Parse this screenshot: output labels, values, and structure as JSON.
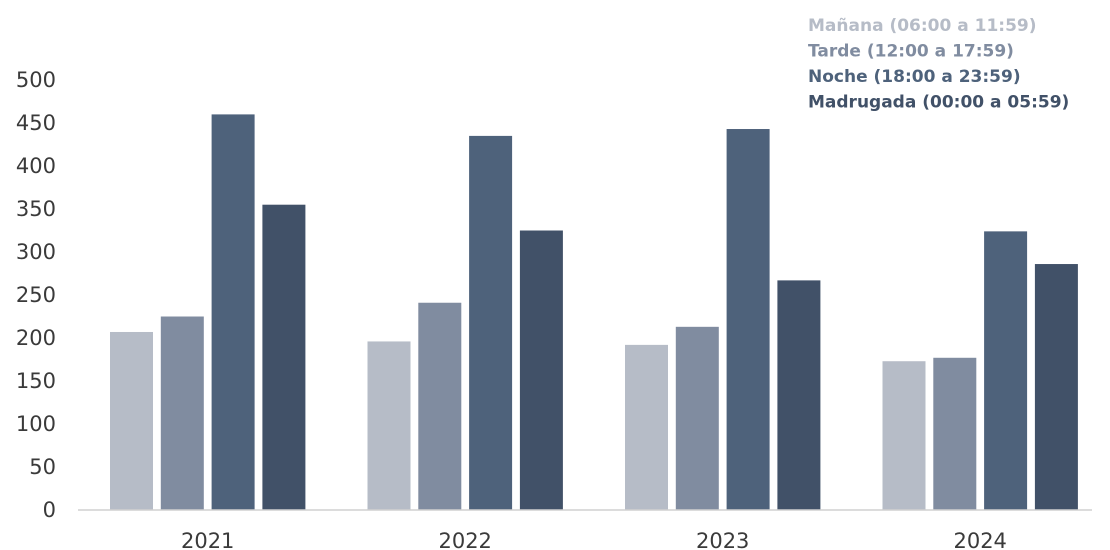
{
  "chart_data": {
    "type": "bar",
    "categories": [
      "2021",
      "2022",
      "2023",
      "2024"
    ],
    "series": [
      {
        "name": "Mañana (06:00 a 11:59)",
        "color": "#b6bcc7",
        "values": [
          207,
          196,
          192,
          173
        ]
      },
      {
        "name": "Tarde (12:00 a 17:59)",
        "color": "#808ca0",
        "values": [
          225,
          241,
          213,
          177
        ]
      },
      {
        "name": "Noche (18:00 a 23:59)",
        "color": "#4e627b",
        "values": [
          460,
          435,
          443,
          324
        ]
      },
      {
        "name": "Madrugada (00:00 a 05:59)",
        "color": "#415168",
        "values": [
          355,
          325,
          267,
          286
        ]
      }
    ],
    "y_ticks": [
      "0",
      "50",
      "100",
      "150",
      "200",
      "250",
      "300",
      "350",
      "400",
      "450",
      "500"
    ],
    "ylim": [
      0,
      500
    ],
    "grid": false,
    "legend_position": "top-right",
    "title": "",
    "xlabel": "",
    "ylabel": ""
  }
}
